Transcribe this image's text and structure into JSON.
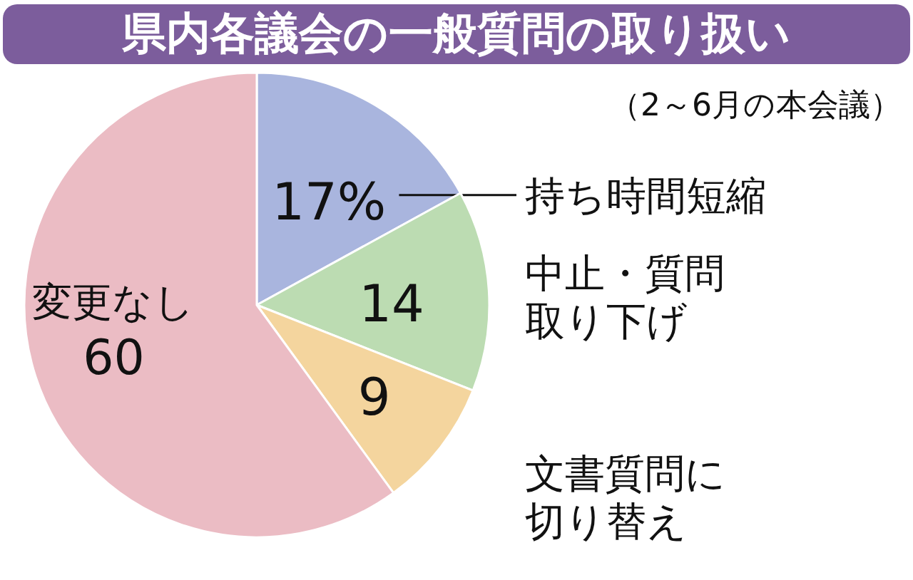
{
  "chart_data": {
    "type": "pie",
    "title": "県内各議会の一般質問の取り扱い",
    "subtitle": "（2～6月の本会議）",
    "categories": [
      "持ち時間短縮",
      "中止・質問取り下げ",
      "文書質問に切り替え",
      "変更なし"
    ],
    "values": [
      17,
      14,
      9,
      60
    ],
    "value_labels": [
      "17%",
      "14",
      "9",
      "60"
    ],
    "colors": [
      "#a9b5de",
      "#bcdcb2",
      "#f4d59e",
      "#ebbcc4"
    ]
  }
}
